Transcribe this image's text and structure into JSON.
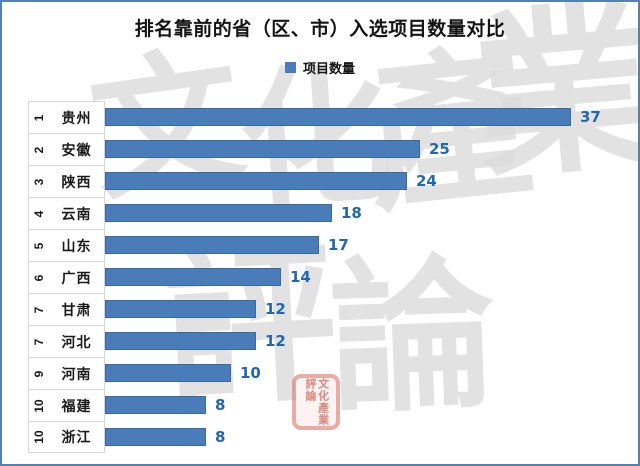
{
  "title": "排名靠前的省（区、市）入选项目数量对比",
  "legend": {
    "label": "项目数量",
    "swatch_color": "#4a7cba"
  },
  "chart_data": {
    "type": "bar",
    "orientation": "horizontal",
    "title": "排名靠前的省（区、市）入选项目数量对比",
    "series_name": "项目数量",
    "categories": [
      "贵州",
      "安徽",
      "陕西",
      "云南",
      "山东",
      "广西",
      "甘肃",
      "河北",
      "河南",
      "福建",
      "浙江"
    ],
    "ranks": [
      "1",
      "2",
      "3",
      "4",
      "5",
      "6",
      "7",
      "7",
      "9",
      "10",
      "10"
    ],
    "values": [
      37,
      25,
      24,
      18,
      17,
      14,
      12,
      12,
      10,
      8,
      8
    ],
    "axis_max": 37,
    "bar_color": "#4a7cba",
    "bar_border_color": "#3a68a0",
    "value_label_color": "#2268b0",
    "grid": false,
    "legend_position": "top-center",
    "value_labels_shown": true
  },
  "rows": [
    {
      "rank": "1",
      "province": "贵州",
      "value": 37
    },
    {
      "rank": "2",
      "province": "安徽",
      "value": 25
    },
    {
      "rank": "3",
      "province": "陕西",
      "value": 24
    },
    {
      "rank": "4",
      "province": "云南",
      "value": 18
    },
    {
      "rank": "5",
      "province": "山东",
      "value": 17
    },
    {
      "rank": "6",
      "province": "广西",
      "value": 14
    },
    {
      "rank": "7",
      "province": "甘肃",
      "value": 12
    },
    {
      "rank": "7",
      "province": "河北",
      "value": 12
    },
    {
      "rank": "9",
      "province": "河南",
      "value": 10
    },
    {
      "rank": "10",
      "province": "福建",
      "value": 8
    },
    {
      "rank": "10",
      "province": "浙江",
      "value": 8
    }
  ],
  "watermark": {
    "text": "文化產業評論",
    "chars": [
      "文",
      "化",
      "產",
      "業",
      "評",
      "論"
    ],
    "color": "#dcdcdc",
    "seal_text": "文化產業評論",
    "seal_color": "#c64436"
  },
  "frame": {
    "border_color": "#5580b2",
    "background": "#ffffff"
  }
}
